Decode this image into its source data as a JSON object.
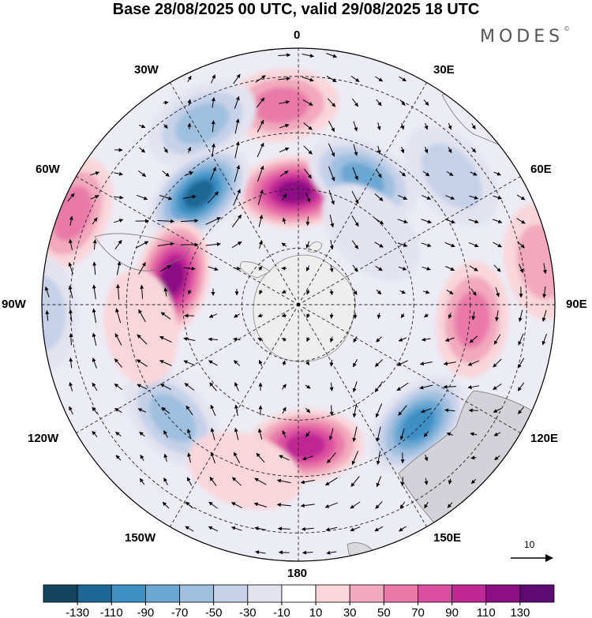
{
  "title": "Base 28/08/2025 00 UTC, valid 29/08/2025 18 UTC",
  "brand": "MODES",
  "brand_mark": "©",
  "longitude_labels": {
    "lon_0": "0",
    "lon_30e": "30E",
    "lon_60e": "60E",
    "lon_90e": "90E",
    "lon_120e": "120E",
    "lon_150e": "150E",
    "lon_180": "180",
    "lon_150w": "150W",
    "lon_120w": "120W",
    "lon_90w": "90W",
    "lon_60w": "60W",
    "lon_30w": "30W"
  },
  "vector_reference": {
    "label": "10",
    "arrow_icon": "arrow-right-icon"
  },
  "colorbar": {
    "ticks": [
      "-130",
      "-110",
      "-90",
      "-70",
      "-50",
      "-30",
      "-10",
      "10",
      "30",
      "50",
      "70",
      "90",
      "110",
      "130"
    ],
    "colors": [
      "#13455e",
      "#1a6893",
      "#3d8fc4",
      "#6ba8d3",
      "#9fbfdf",
      "#c5d1e8",
      "#e3e3f0",
      "#ffffff",
      "#f9d6da",
      "#f2a9bd",
      "#e97aa8",
      "#dc4fa0",
      "#bf2894",
      "#8c0f84",
      "#5e0a73"
    ]
  },
  "anomaly_centers": [
    {
      "lon": -5,
      "colat": 0.78,
      "value": 70
    },
    {
      "lon": -28,
      "colat": 0.8,
      "value": -60
    },
    {
      "lon": -2,
      "colat": 0.44,
      "value": 115
    },
    {
      "lon": 27,
      "colat": 0.55,
      "value": -80
    },
    {
      "lon": 50,
      "colat": 0.78,
      "value": -50
    },
    {
      "lon": -42,
      "colat": 0.58,
      "value": -130
    },
    {
      "lon": -68,
      "colat": 0.95,
      "value": 55
    },
    {
      "lon": -78,
      "colat": 0.5,
      "value": 125
    },
    {
      "lon": -92,
      "colat": 1.0,
      "value": -35
    },
    {
      "lon": -132,
      "colat": 0.66,
      "value": -60
    },
    {
      "lon": 177,
      "colat": 0.55,
      "value": 105
    },
    {
      "lon": 135,
      "colat": 0.66,
      "value": -110
    },
    {
      "lon": 95,
      "colat": 0.68,
      "value": 70
    },
    {
      "lon": 80,
      "colat": 0.96,
      "value": 45
    },
    {
      "lon": -162,
      "colat": 0.68,
      "value": 25
    },
    {
      "lon": 45,
      "colat": 0.4,
      "value": -20
    },
    {
      "lon": -98,
      "colat": 0.62,
      "value": 25
    }
  ]
}
